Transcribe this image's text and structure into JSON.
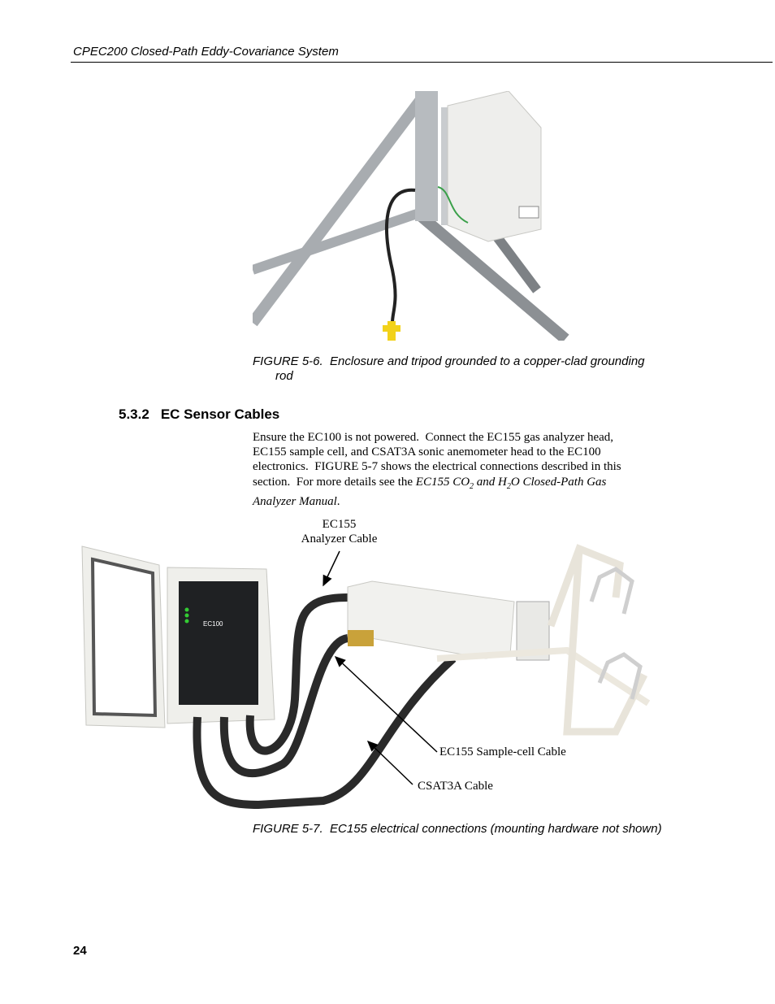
{
  "header": {
    "title": "CPEC200 Closed-Path Eddy-Covariance System"
  },
  "figure_5_6": {
    "caption": "FIGURE 5-6.  Enclosure and tripod grounded to a copper-clad grounding rod"
  },
  "section": {
    "number": "5.3.2",
    "title": "EC Sensor Cables",
    "paragraph": [
      "Ensure the EC100 is not powered.  Connect the EC155 gas analyzer head, EC155 sample cell, and CSAT3A sonic anemometer head to the EC100 electronics.  FIGURE 5-7 shows the electrical connections described in this section.  For more details see the ",
      "EC155 CO",
      "2",
      " and H",
      "2",
      "O Closed-Path Gas Analyzer Manual",
      "."
    ]
  },
  "figure_5_7": {
    "device_label": "EC100",
    "callouts": [
      [
        "EC155",
        "Analyzer Cable"
      ],
      "EC155 Sample-cell Cable",
      "CSAT3A Cable"
    ],
    "caption": "FIGURE 5-7.  EC155 electrical connections (mounting hardware not shown)"
  },
  "footer": {
    "page_number": "24"
  }
}
